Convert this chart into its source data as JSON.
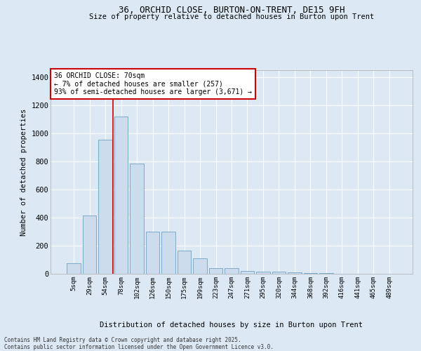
{
  "title_line1": "36, ORCHID CLOSE, BURTON-ON-TRENT, DE15 9FH",
  "title_line2": "Size of property relative to detached houses in Burton upon Trent",
  "xlabel": "Distribution of detached houses by size in Burton upon Trent",
  "ylabel": "Number of detached properties",
  "bar_color": "#ccdcec",
  "bar_edgecolor": "#7aaaca",
  "vline_color": "#cc0000",
  "annotation_text": "36 ORCHID CLOSE: 70sqm\n← 7% of detached houses are smaller (257)\n93% of semi-detached houses are larger (3,671) →",
  "annotation_box_facecolor": "#ffffff",
  "annotation_box_edgecolor": "#cc0000",
  "categories": [
    "5sqm",
    "29sqm",
    "54sqm",
    "78sqm",
    "102sqm",
    "126sqm",
    "150sqm",
    "175sqm",
    "199sqm",
    "223sqm",
    "247sqm",
    "271sqm",
    "295sqm",
    "320sqm",
    "344sqm",
    "368sqm",
    "392sqm",
    "416sqm",
    "441sqm",
    "465sqm",
    "489sqm"
  ],
  "values": [
    75,
    415,
    955,
    1120,
    785,
    300,
    300,
    165,
    110,
    40,
    40,
    20,
    15,
    13,
    10,
    5,
    4,
    0,
    0,
    0,
    0
  ],
  "ylim": [
    0,
    1450
  ],
  "yticks": [
    0,
    200,
    400,
    600,
    800,
    1000,
    1200,
    1400
  ],
  "background_color": "#dce8f4",
  "grid_color": "#ffffff",
  "footer_line1": "Contains HM Land Registry data © Crown copyright and database right 2025.",
  "footer_line2": "Contains public sector information licensed under the Open Government Licence v3.0.",
  "vline_xindex": 3
}
